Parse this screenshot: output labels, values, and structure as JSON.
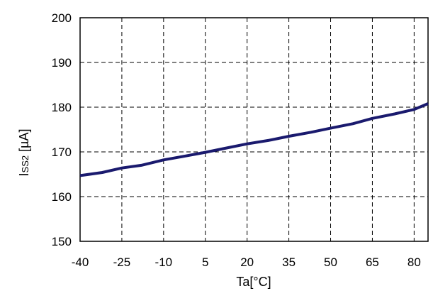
{
  "chart_data": {
    "type": "line",
    "title": "",
    "xlabel": "Ta[°C]",
    "ylabel_main": "I",
    "ylabel_sub": "SS2",
    "ylabel_unit": " [µA]",
    "xlim": [
      -40,
      85
    ],
    "ylim": [
      150,
      200
    ],
    "xticks": [
      -40,
      -25,
      -10,
      5,
      20,
      35,
      50,
      65,
      80
    ],
    "yticks": [
      150,
      160,
      170,
      180,
      190,
      200
    ],
    "xtick_labels": [
      "-40",
      "-25",
      "-10",
      "5",
      "20",
      "35",
      "50",
      "65",
      "80"
    ],
    "ytick_labels": [
      "150",
      "160",
      "170",
      "180",
      "190",
      "200"
    ],
    "grid": true,
    "grid_style": "dashed",
    "series": [
      {
        "color": "#1a1a6e",
        "x": [
          -40,
          -32,
          -25,
          -18,
          -10,
          -2,
          5,
          12,
          20,
          28,
          35,
          43,
          50,
          58,
          65,
          73,
          80,
          85
        ],
        "y": [
          164.7,
          165.4,
          166.4,
          167.0,
          168.2,
          169.1,
          169.9,
          170.8,
          171.8,
          172.6,
          173.5,
          174.4,
          175.3,
          176.3,
          177.5,
          178.5,
          179.5,
          180.8
        ]
      }
    ]
  }
}
